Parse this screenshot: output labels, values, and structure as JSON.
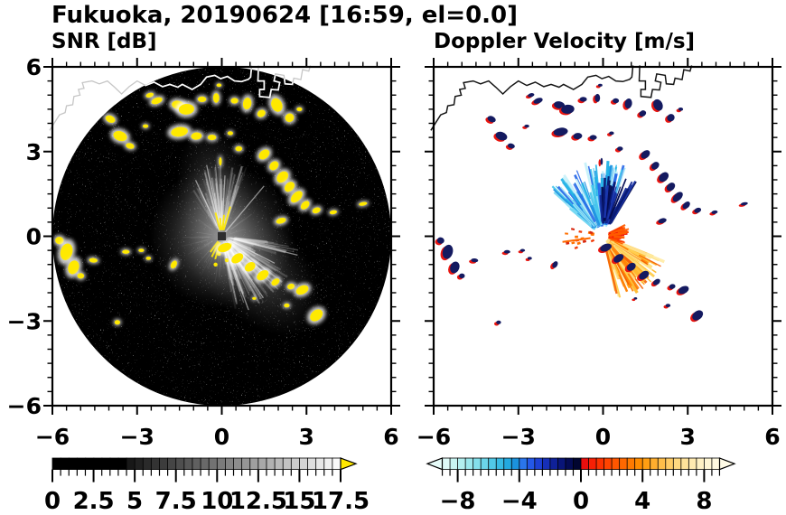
{
  "header": {
    "title": "Fukuoka, 20190624 [16:59, el=0.0]"
  },
  "panels": [
    {
      "id": "snr",
      "subtitle": "SNR [dB]"
    },
    {
      "id": "velocity",
      "subtitle": "Doppler Velocity [m/s]"
    }
  ],
  "chart_data": {
    "type": "radar_ppi_pair",
    "title": "Fukuoka, 20190624 [16:59, el=0.0]",
    "site": "Fukuoka",
    "date": "20190624",
    "time": "16:59",
    "elevation_deg": 0.0,
    "panels": [
      {
        "name": "SNR",
        "units": "dB",
        "colormap": "grayscale",
        "range": [
          0,
          17.5
        ],
        "background": "#000000"
      },
      {
        "name": "Doppler Velocity",
        "units": "m/s",
        "colormap": "cyan-blue / red-yellow diverging",
        "range": [
          -9,
          9
        ],
        "background": "#ffffff"
      }
    ],
    "axes": {
      "xlim": [
        -6,
        6
      ],
      "ylim": [
        -6,
        6
      ],
      "major_ticks": [
        -6,
        -3,
        0,
        3,
        6
      ],
      "tick_labels": [
        "−6",
        "−3",
        "0",
        "3",
        "6"
      ],
      "minor_step": 0.5,
      "units": "km"
    },
    "colorbars": {
      "snr": {
        "min": 0,
        "max": 17.5,
        "box_step": 0.5,
        "tick_values": [
          0,
          2.5,
          5,
          7.5,
          10,
          12.5,
          15,
          17.5
        ],
        "tick_labels": [
          "0",
          "2.5",
          "5",
          "7.5",
          "10",
          "12.5",
          "15",
          "17.5"
        ],
        "over_arrow_color": "#ffe800"
      },
      "velocity": {
        "min": -9,
        "max": 9,
        "box_step": 0.5,
        "tick_values": [
          -8,
          -4,
          0,
          4,
          8
        ],
        "tick_labels": [
          "−8",
          "−4",
          "0",
          "4",
          "8"
        ],
        "under_arrow_color": "#e6fbf8",
        "over_arrow_color": "#fffbe6",
        "neg_colors": [
          "#defaf7",
          "#c9f5f2",
          "#b3efef",
          "#9ce8ed",
          "#84dfeb",
          "#6bd5e9",
          "#51c9e7",
          "#38bbe4",
          "#23a9e0",
          "#1b92dd",
          "#2a75ec",
          "#2458e8",
          "#1d40d4",
          "#162fb8",
          "#0f2198",
          "#091578",
          "#040b54",
          "#010530"
        ],
        "pos_colors": [
          "#e90f0e",
          "#f62005",
          "#fc3200",
          "#ff4400",
          "#ff5600",
          "#ff6800",
          "#ff7a00",
          "#ff8c00",
          "#ff9e12",
          "#ffae2e",
          "#ffbe4a",
          "#ffcc66",
          "#ffd880",
          "#ffe29a",
          "#ffeab0",
          "#fff1c4",
          "#fff6d4",
          "#fff9e0"
        ]
      }
    },
    "coastline_xy": [
      [
        -6.1,
        3.75
      ],
      [
        -5.75,
        4.3
      ],
      [
        -5.55,
        4.38
      ],
      [
        -5.5,
        4.62
      ],
      [
        -5.28,
        4.66
      ],
      [
        -5.24,
        4.95
      ],
      [
        -5.02,
        5.0
      ],
      [
        -5.08,
        5.2
      ],
      [
        -4.88,
        5.24
      ],
      [
        -4.94,
        5.44
      ],
      [
        -4.6,
        5.5
      ],
      [
        -4.34,
        5.4
      ],
      [
        -4.05,
        5.5
      ],
      [
        -3.8,
        5.28
      ],
      [
        -3.55,
        5.04
      ],
      [
        -3.28,
        5.3
      ],
      [
        -3.0,
        5.5
      ],
      [
        -2.7,
        5.34
      ],
      [
        -2.4,
        5.46
      ],
      [
        -2.1,
        5.3
      ],
      [
        -1.84,
        5.38
      ],
      [
        -1.56,
        5.28
      ],
      [
        -1.4,
        5.38
      ],
      [
        -1.05,
        5.2
      ],
      [
        -0.75,
        5.38
      ],
      [
        -0.54,
        5.64
      ],
      [
        -0.25,
        5.7
      ],
      [
        -0.04,
        5.58
      ],
      [
        0.2,
        5.66
      ],
      [
        0.45,
        5.5
      ],
      [
        0.7,
        5.48
      ],
      [
        0.94,
        5.56
      ],
      [
        1.02,
        5.64
      ],
      [
        1.06,
        6.05
      ]
    ],
    "harbor_xy": [
      [
        1.3,
        6.05
      ],
      [
        1.28,
        5.5
      ],
      [
        1.5,
        5.5
      ],
      [
        1.5,
        5.2
      ],
      [
        1.34,
        5.2
      ],
      [
        1.34,
        4.95
      ],
      [
        1.7,
        4.92
      ],
      [
        1.75,
        5.2
      ],
      [
        2.0,
        5.18
      ],
      [
        2.05,
        5.45
      ],
      [
        1.85,
        5.5
      ],
      [
        1.9,
        5.75
      ],
      [
        2.2,
        5.7
      ],
      [
        2.24,
        5.4
      ],
      [
        2.5,
        5.38
      ],
      [
        2.55,
        5.6
      ],
      [
        2.8,
        5.55
      ],
      [
        2.86,
        5.9
      ],
      [
        3.08,
        5.85
      ],
      [
        3.14,
        6.05
      ]
    ],
    "echo_blobs": [
      [
        -2.55,
        5.0,
        0.28,
        0.16,
        -15
      ],
      [
        -2.3,
        4.8,
        0.4,
        0.22,
        -20
      ],
      [
        -1.55,
        4.65,
        0.45,
        0.3,
        10
      ],
      [
        -1.25,
        4.5,
        0.55,
        0.38,
        -5
      ],
      [
        -0.7,
        4.85,
        0.3,
        0.2,
        0
      ],
      [
        -0.2,
        4.9,
        0.22,
        0.34,
        0
      ],
      [
        -0.1,
        5.35,
        0.18,
        0.12,
        0
      ],
      [
        0.45,
        4.8,
        0.26,
        0.2,
        0
      ],
      [
        0.9,
        4.7,
        0.3,
        0.42,
        8
      ],
      [
        1.4,
        4.35,
        0.3,
        0.24,
        -30
      ],
      [
        1.95,
        4.65,
        0.38,
        0.5,
        -25
      ],
      [
        2.4,
        4.2,
        0.32,
        0.3,
        -40
      ],
      [
        2.75,
        4.5,
        0.2,
        0.14,
        0
      ],
      [
        -3.95,
        4.15,
        0.36,
        0.24,
        25
      ],
      [
        -3.6,
        3.55,
        0.5,
        0.34,
        20
      ],
      [
        -3.25,
        3.2,
        0.3,
        0.2,
        15
      ],
      [
        -2.7,
        3.9,
        0.2,
        0.13,
        0
      ],
      [
        -1.5,
        3.7,
        0.6,
        0.34,
        -8
      ],
      [
        -0.9,
        3.55,
        0.38,
        0.26,
        -5
      ],
      [
        -0.35,
        3.5,
        0.3,
        0.2,
        0
      ],
      [
        0.3,
        3.65,
        0.2,
        0.14,
        0
      ],
      [
        0.6,
        3.1,
        0.24,
        0.18,
        0
      ],
      [
        -0.05,
        2.65,
        0.1,
        0.3,
        0
      ],
      [
        1.5,
        2.9,
        0.42,
        0.3,
        -40
      ],
      [
        1.85,
        2.5,
        0.36,
        0.28,
        -45
      ],
      [
        2.15,
        2.1,
        0.46,
        0.34,
        -45
      ],
      [
        2.4,
        1.75,
        0.4,
        0.3,
        -45
      ],
      [
        2.65,
        1.4,
        0.5,
        0.3,
        -45
      ],
      [
        2.95,
        1.1,
        0.36,
        0.24,
        -45
      ],
      [
        3.35,
        0.92,
        0.3,
        0.2,
        -20
      ],
      [
        3.95,
        0.85,
        0.26,
        0.14,
        -10
      ],
      [
        5.0,
        1.15,
        0.3,
        0.13,
        -10
      ],
      [
        2.1,
        0.55,
        0.36,
        0.2,
        -15
      ],
      [
        -5.75,
        -0.15,
        0.3,
        0.26,
        10
      ],
      [
        -5.5,
        -0.55,
        0.42,
        0.6,
        15
      ],
      [
        -5.25,
        -1.1,
        0.38,
        0.5,
        20
      ],
      [
        -5.0,
        -1.4,
        0.24,
        0.2,
        0
      ],
      [
        -4.55,
        -0.85,
        0.3,
        0.16,
        5
      ],
      [
        -3.4,
        -0.55,
        0.26,
        0.14,
        0
      ],
      [
        -2.85,
        -0.5,
        0.2,
        0.12,
        0
      ],
      [
        -2.6,
        -0.78,
        0.18,
        0.12,
        0
      ],
      [
        -1.7,
        -1.0,
        0.2,
        0.3,
        30
      ],
      [
        -3.7,
        -3.05,
        0.2,
        0.16,
        0
      ],
      [
        0.1,
        -0.4,
        0.5,
        0.3,
        -20
      ],
      [
        0.55,
        -0.78,
        0.46,
        0.3,
        -35
      ],
      [
        1.0,
        -1.08,
        0.4,
        0.3,
        -35
      ],
      [
        1.45,
        -1.38,
        0.46,
        0.3,
        -35
      ],
      [
        1.9,
        -1.62,
        0.32,
        0.22,
        -35
      ],
      [
        2.45,
        -1.78,
        0.26,
        0.2,
        -15
      ],
      [
        2.85,
        -1.9,
        0.46,
        0.3,
        -25
      ],
      [
        2.3,
        -2.45,
        0.2,
        0.14,
        0
      ],
      [
        3.35,
        -2.8,
        0.5,
        0.36,
        -40
      ],
      [
        1.15,
        -2.2,
        0.14,
        0.1,
        0
      ]
    ],
    "snr_texture": {
      "up_fan": {
        "az": [
          -32,
          20
        ],
        "n": 70
      },
      "downright_fan": {
        "az": [
          96,
          172
        ],
        "n": 110
      },
      "ambient": {
        "az": [
          0,
          360
        ],
        "n": 60
      },
      "bright_rays_az": [
        -25,
        -12,
        3,
        40,
        104,
        117,
        131,
        146,
        160
      ],
      "yellow_ray_az": [
        -15,
        -5,
        6,
        16,
        196,
        206,
        216
      ],
      "center_specks": [
        [
          0.05,
          -0.35
        ],
        [
          -0.1,
          -0.62
        ],
        [
          0.18,
          -0.85
        ],
        [
          -0.22,
          -1.0
        ],
        [
          0.3,
          -0.3
        ]
      ]
    },
    "velocity_fans": {
      "cool": {
        "az": [
          -52,
          18
        ],
        "r": [
          0.35,
          2.7
        ],
        "n": 120,
        "colors": [
          "#c6f1fa",
          "#9fe6f7",
          "#74d7f2",
          "#46c6ec",
          "#22b1e6",
          "#1f93e2",
          "#2b6ae8"
        ]
      },
      "cool_dark": {
        "az": [
          -4,
          32
        ],
        "r": [
          0.45,
          2.3
        ],
        "n": 45,
        "colors": [
          "#1b38b0",
          "#122894",
          "#0a1a74",
          "#040d52"
        ]
      },
      "warm": {
        "az": [
          112,
          168
        ],
        "r": [
          0.3,
          2.35
        ],
        "n": 120,
        "colors": [
          "#ffeaa0",
          "#ffde78",
          "#ffcf52",
          "#ffbb30",
          "#ffa114",
          "#ff8205",
          "#f55f00"
        ]
      },
      "warm_red": {
        "az": [
          60,
          112
        ],
        "r": [
          0.15,
          0.95
        ],
        "n": 35,
        "colors": [
          "#ee1508",
          "#fb3c00",
          "#ff5c00"
        ]
      },
      "left_dots": {
        "az": [
          246,
          292
        ],
        "r": [
          0.3,
          1.35
        ],
        "n": 16,
        "colors": [
          "#f03a08",
          "#ff7000",
          "#d82810"
        ]
      }
    },
    "feature_colors": {
      "echo_yellow": "#ffe900",
      "clutter_navy": "#141a60",
      "clutter_red": "#e8150f",
      "coast_on_black": "#ffffff",
      "coast_on_white": "#151515",
      "coast_outside_disk": "#c6c6c6"
    }
  }
}
